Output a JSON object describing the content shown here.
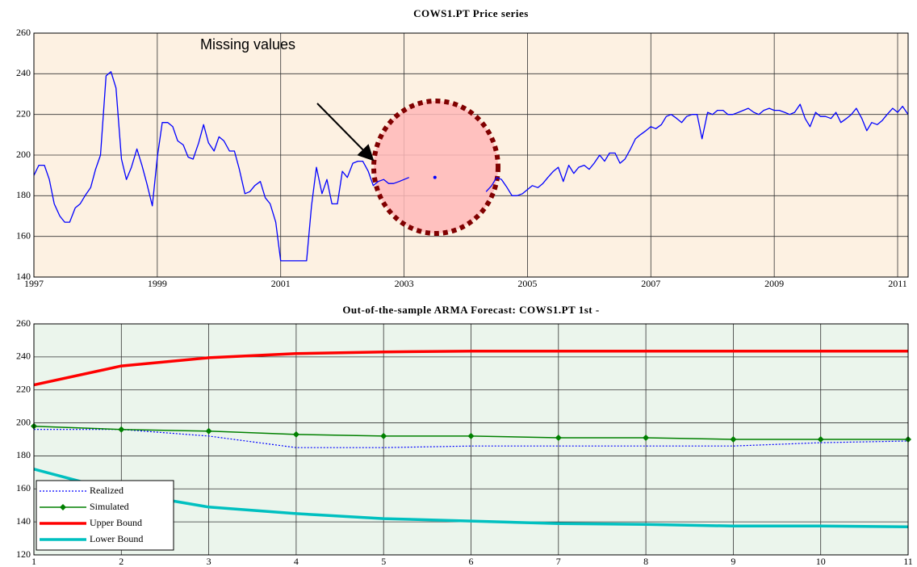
{
  "chart_data": [
    {
      "type": "line",
      "title": "COWS1.PT Price series",
      "x": [
        1997,
        1997.08,
        1997.17,
        1997.25,
        1997.33,
        1997.42,
        1997.5,
        1997.58,
        1997.67,
        1997.75,
        1997.83,
        1997.92,
        1998,
        1998.08,
        1998.17,
        1998.25,
        1998.33,
        1998.42,
        1998.5,
        1998.58,
        1998.67,
        1998.75,
        1998.83,
        1998.92,
        1999,
        1999.08,
        1999.17,
        1999.25,
        1999.33,
        1999.42,
        1999.5,
        1999.58,
        1999.67,
        1999.75,
        1999.83,
        1999.92,
        2000,
        2000.08,
        2000.17,
        2000.25,
        2000.33,
        2000.42,
        2000.5,
        2000.58,
        2000.67,
        2000.75,
        2000.83,
        2000.92,
        2001,
        2001.08,
        2001.17,
        2001.25,
        2001.33,
        2001.42,
        2001.5,
        2001.58,
        2001.67,
        2001.75,
        2001.83,
        2001.92,
        2002,
        2002.08,
        2002.17,
        2002.25,
        2002.33,
        2002.42,
        2002.5,
        2002.58,
        2002.67,
        2002.75,
        2002.83,
        2002.92,
        2003,
        2003.08,
        2003.17,
        2003.25,
        2003.33,
        2003.42,
        2003.5,
        2003.58,
        2003.67,
        2003.75,
        2003.83,
        2003.92,
        2004,
        2004.08,
        2004.17,
        2004.25,
        2004.33,
        2004.42,
        2004.5,
        2004.58,
        2004.67,
        2004.75,
        2004.83,
        2004.92,
        2005,
        2005.08,
        2005.17,
        2005.25,
        2005.33,
        2005.42,
        2005.5,
        2005.58,
        2005.67,
        2005.75,
        2005.83,
        2005.92,
        2006,
        2006.08,
        2006.17,
        2006.25,
        2006.33,
        2006.42,
        2006.5,
        2006.58,
        2006.67,
        2006.75,
        2006.83,
        2006.92,
        2007,
        2007.08,
        2007.17,
        2007.25,
        2007.33,
        2007.42,
        2007.5,
        2007.58,
        2007.67,
        2007.75,
        2007.83,
        2007.92,
        2008,
        2008.08,
        2008.17,
        2008.25,
        2008.33,
        2008.42,
        2008.5,
        2008.58,
        2008.67,
        2008.75,
        2008.83,
        2008.92,
        2009,
        2009.08,
        2009.17,
        2009.25,
        2009.33,
        2009.42,
        2009.5,
        2009.58,
        2009.67,
        2009.75,
        2009.83,
        2009.92,
        2010,
        2010.08,
        2010.17,
        2010.25,
        2010.33,
        2010.42,
        2010.5,
        2010.58,
        2010.67,
        2010.75,
        2010.83,
        2010.92,
        2011,
        2011.08,
        2011.17
      ],
      "values": [
        190,
        195,
        195,
        188,
        176,
        170,
        167,
        167,
        174,
        176,
        180,
        184,
        193,
        200,
        239,
        241,
        233,
        198,
        188,
        194,
        203,
        195,
        186,
        175,
        199,
        216,
        216,
        214,
        207,
        205,
        199,
        198,
        206,
        215,
        206,
        202,
        209,
        207,
        202,
        202,
        193,
        181,
        182,
        185,
        187,
        179,
        176,
        167,
        148,
        148,
        148,
        148,
        148,
        148,
        175,
        194,
        181,
        188,
        176,
        176,
        192,
        189,
        196,
        197,
        197,
        192,
        185,
        187,
        188,
        186,
        186,
        187,
        188,
        189,
        null,
        null,
        null,
        null,
        189,
        null,
        null,
        null,
        null,
        null,
        null,
        null,
        null,
        null,
        182,
        185,
        189,
        188,
        184,
        180,
        180,
        181,
        183,
        185,
        184,
        186,
        189,
        192,
        194,
        187,
        195,
        191,
        194,
        195,
        193,
        196,
        200,
        197,
        201,
        201,
        196,
        198,
        203,
        208,
        210,
        212,
        214,
        213,
        215,
        219,
        220,
        218,
        216,
        219,
        220,
        220,
        208,
        221,
        220,
        222,
        222,
        220,
        220,
        221,
        222,
        223,
        221,
        220,
        222,
        223,
        222,
        222,
        221,
        220,
        221,
        225,
        218,
        214,
        221,
        219,
        219,
        218,
        221,
        216,
        218,
        220,
        223,
        218,
        212,
        216,
        215,
        217,
        220,
        223,
        221,
        224,
        220
      ],
      "color": "#0000ff",
      "xlim": [
        1997,
        2011.17
      ],
      "xticks": [
        1997,
        1999,
        2001,
        2003,
        2005,
        2007,
        2009,
        2011
      ],
      "ylim": [
        140,
        260
      ],
      "yticks": [
        140,
        160,
        180,
        200,
        220,
        240,
        260
      ],
      "grid": true,
      "background": "#fdf1e2",
      "annotation": "Missing values"
    },
    {
      "type": "line",
      "title": "Out-of-the-sample ARMA Forecast: COWS1.PT 1st -",
      "x": [
        1,
        2,
        3,
        4,
        5,
        6,
        7,
        8,
        9,
        10,
        11
      ],
      "series": [
        {
          "name": "Realized",
          "color": "#0000ff",
          "linestyle": "dotted",
          "linewidth": 1.2,
          "values": [
            196,
            196,
            192,
            185,
            185,
            186,
            186,
            186,
            186,
            188,
            189
          ]
        },
        {
          "name": "Simulated",
          "color": "#008000",
          "linestyle": "solid",
          "linewidth": 1.5,
          "marker": "diamond",
          "values": [
            198,
            196,
            195,
            193,
            192,
            192,
            191,
            191,
            190,
            190,
            190
          ]
        },
        {
          "name": "Upper Bound",
          "color": "#ff0000",
          "linestyle": "solid",
          "linewidth": 3.5,
          "values": [
            223,
            234.5,
            239.5,
            242,
            243,
            243.5,
            243.5,
            243.5,
            243.5,
            243.5,
            243.5
          ]
        },
        {
          "name": "Lower Bound",
          "color": "#00c0c0",
          "linestyle": "solid",
          "linewidth": 3.5,
          "values": [
            172,
            158,
            149,
            145,
            142,
            140.5,
            139,
            138.5,
            137.5,
            137.5,
            137
          ]
        }
      ],
      "xlim": [
        1,
        11
      ],
      "xticks": [
        1,
        2,
        3,
        4,
        5,
        6,
        7,
        8,
        9,
        10,
        11
      ],
      "ylim": [
        120,
        260
      ],
      "yticks": [
        120,
        140,
        160,
        180,
        200,
        220,
        240,
        260
      ],
      "grid": true,
      "background": "#ebf5ec",
      "legend": "lower left"
    }
  ]
}
